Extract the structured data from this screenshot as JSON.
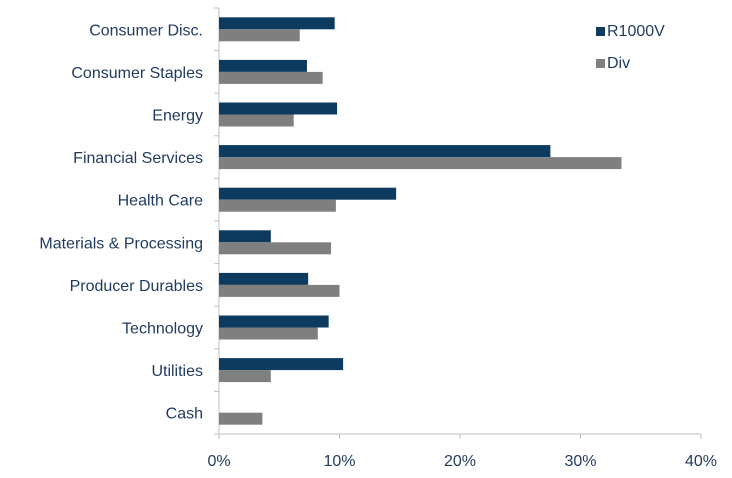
{
  "chart_data": {
    "type": "bar",
    "orientation": "horizontal",
    "categories": [
      "Consumer Disc.",
      "Consumer Staples",
      "Energy",
      "Financial Services",
      "Health Care",
      "Materials & Processing",
      "Producer Durables",
      "Technology",
      "Utilities",
      "Cash"
    ],
    "series": [
      {
        "name": "R1000V",
        "color": "#0d3a5f",
        "values": [
          9.6,
          7.3,
          9.8,
          27.5,
          14.7,
          4.3,
          7.4,
          9.1,
          10.3,
          0
        ]
      },
      {
        "name": "Div",
        "color": "#7f7f7f",
        "values": [
          6.7,
          8.6,
          6.2,
          33.4,
          9.7,
          9.3,
          10.0,
          8.2,
          4.3,
          3.6
        ]
      }
    ],
    "xlim": [
      0,
      40
    ],
    "xticks": [
      0,
      10,
      20,
      30,
      40
    ],
    "tick_suffix": "%",
    "grid": false,
    "legend_position": "top-right"
  }
}
